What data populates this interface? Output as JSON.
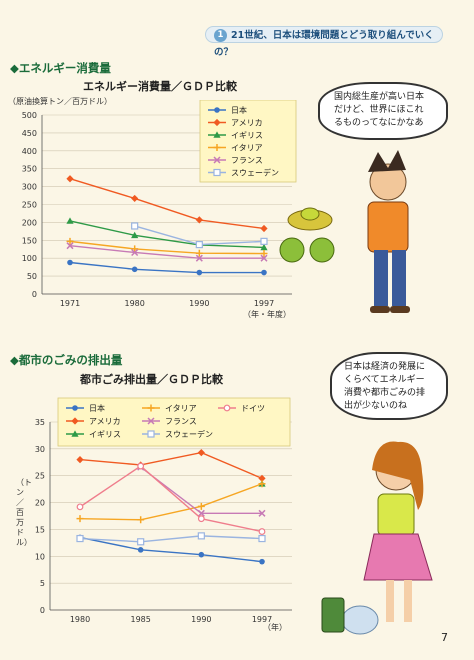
{
  "banner": {
    "num": "1",
    "text": "21世紀、日本は環境問題とどう取り組んでいくの？"
  },
  "chart1": {
    "section": "◆エネルギー消費量",
    "subtitle": "エネルギー消費量／ＧＤＰ比較",
    "unit": "（原油換算トン／百万ドル）",
    "xunit": "（年・年度）"
  },
  "chart2": {
    "section": "◆都市のごみの排出量",
    "subtitle": "都市ごみ排出量／ＧＤＰ比較",
    "unit": "（トン／百万ドル）",
    "xunit": "（年）"
  },
  "bubble1": {
    "lines": [
      "国内総生産が高い日本",
      "だけど、世界にほこれ",
      "るものってなにかなあ"
    ]
  },
  "bubble2": {
    "lines": [
      "日本は経済の発展に",
      "くらべてエネルギー",
      "消費や都市ごみの排",
      "出が少ないのね"
    ]
  },
  "page_number": "7",
  "colors": {
    "japan": "#3a74c4",
    "usa": "#f05a22",
    "uk": "#2e9a47",
    "italy": "#f6a623",
    "france": "#c77ab5",
    "sweden": "#9ab4e0",
    "germany": "#ef7d8c"
  },
  "chart_data": [
    {
      "type": "line",
      "x": [
        "1971",
        "1980",
        "1990",
        "1997"
      ],
      "ylim": [
        0,
        500
      ],
      "yticks": [
        0,
        50,
        100,
        150,
        200,
        250,
        300,
        350,
        400,
        450,
        500
      ],
      "series": [
        {
          "name": "日本",
          "key": "japan",
          "marker": "circle",
          "values": [
            88,
            69,
            60,
            60
          ]
        },
        {
          "name": "アメリカ",
          "key": "usa",
          "marker": "diamond",
          "values": [
            322,
            267,
            207,
            183
          ]
        },
        {
          "name": "イギリス",
          "key": "uk",
          "marker": "triangle",
          "values": [
            204,
            164,
            137,
            130
          ]
        },
        {
          "name": "イタリア",
          "key": "italy",
          "marker": "dash",
          "values": [
            147,
            126,
            114,
            113
          ]
        },
        {
          "name": "フランス",
          "key": "france",
          "marker": "x",
          "values": [
            135,
            116,
            100,
            100
          ]
        },
        {
          "name": "スウェーデン",
          "key": "sweden",
          "marker": "square",
          "values": [
            null,
            190,
            138,
            147
          ]
        }
      ],
      "legend": "top-right"
    },
    {
      "type": "line",
      "x": [
        "1980",
        "1985",
        "1990",
        "1997"
      ],
      "ylim": [
        0,
        35
      ],
      "yticks": [
        0,
        5,
        10,
        15,
        20,
        25,
        30,
        35
      ],
      "series": [
        {
          "name": "日本",
          "key": "japan",
          "marker": "circle",
          "values": [
            13.5,
            11.2,
            10.3,
            9.0
          ]
        },
        {
          "name": "アメリカ",
          "key": "usa",
          "marker": "diamond",
          "values": [
            28.0,
            27.0,
            29.3,
            24.5
          ]
        },
        {
          "name": "イギリス",
          "key": "uk",
          "marker": "triangle",
          "values": [
            null,
            null,
            null,
            23.5
          ]
        },
        {
          "name": "イタリア",
          "key": "italy",
          "marker": "dash",
          "values": [
            17.0,
            16.8,
            19.3,
            23.5
          ]
        },
        {
          "name": "フランス",
          "key": "france",
          "marker": "x",
          "values": [
            null,
            26.6,
            18.0,
            18.0
          ]
        },
        {
          "name": "スウェーデン",
          "key": "sweden",
          "marker": "square",
          "values": [
            13.3,
            12.7,
            13.8,
            13.3
          ]
        },
        {
          "name": "ドイツ",
          "key": "germany",
          "marker": "circle-open",
          "values": [
            19.2,
            26.8,
            17.0,
            14.6
          ]
        }
      ],
      "legend": "top"
    }
  ]
}
